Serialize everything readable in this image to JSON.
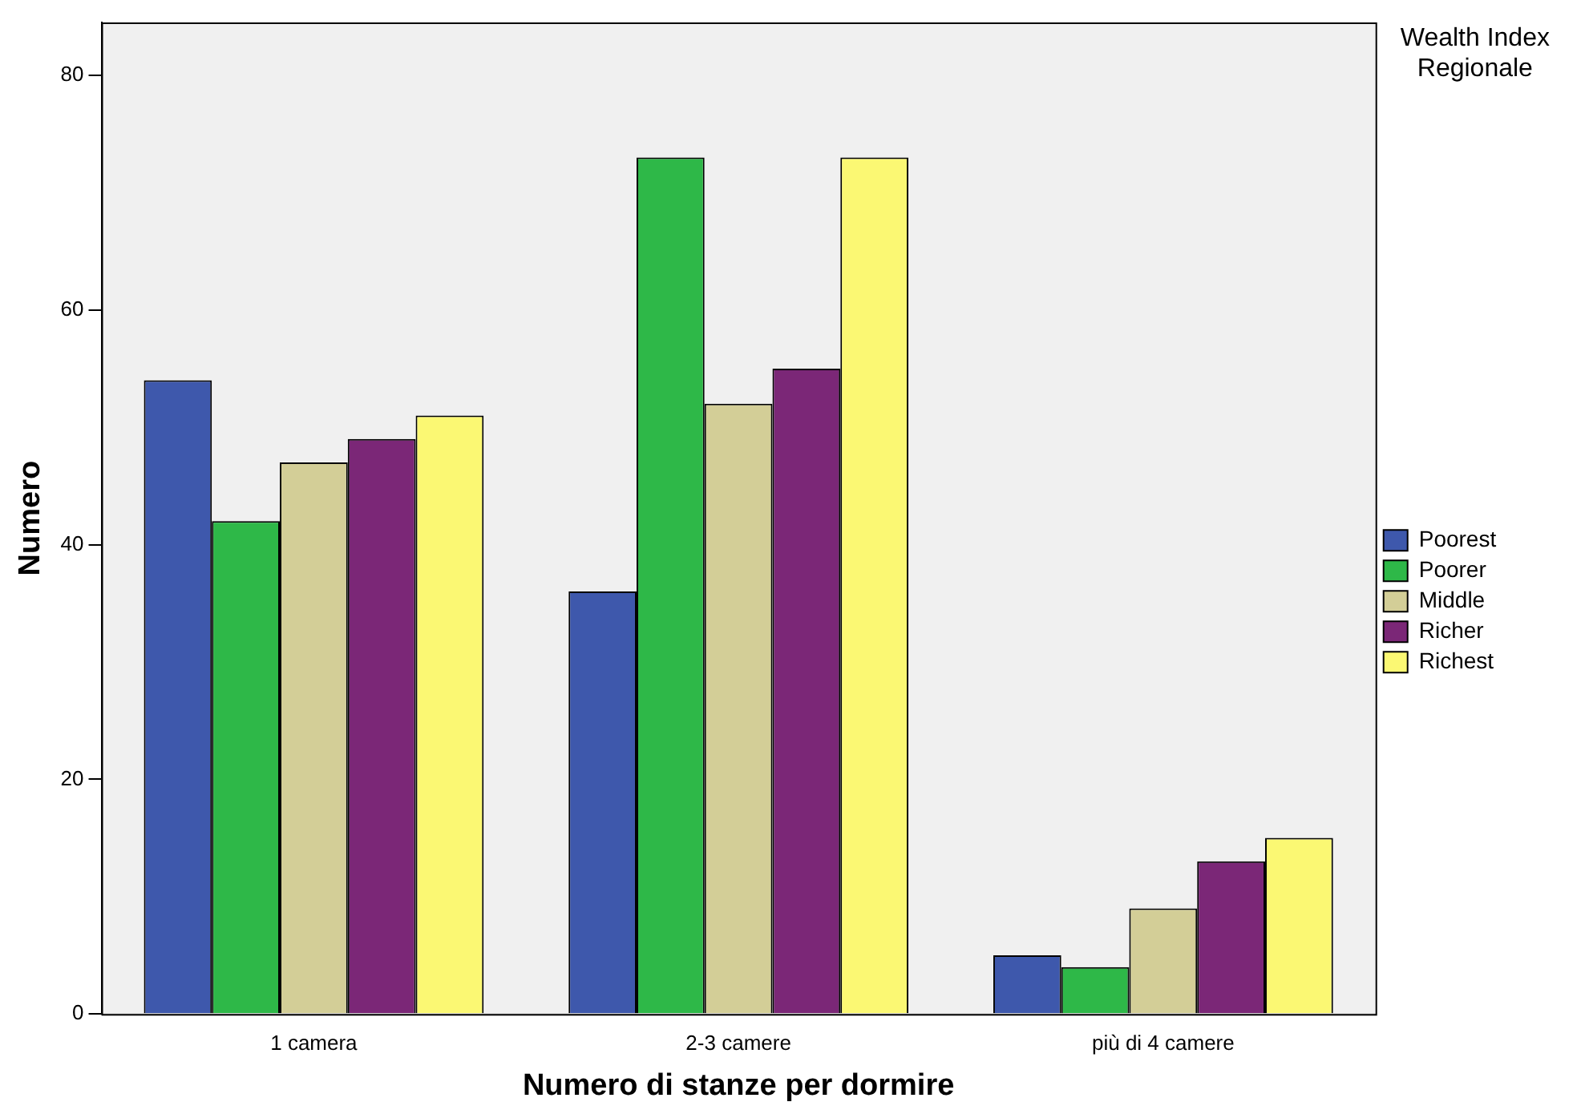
{
  "chart_data": {
    "type": "bar",
    "xlabel": "Numero di stanze per dormire",
    "ylabel": "Numero",
    "legend_title": "Wealth Index Regionale",
    "categories": [
      "1 camera",
      "2-3 camere",
      "più di 4 camere"
    ],
    "series": [
      {
        "name": "Poorest",
        "color": "#3e58ac",
        "values": [
          54,
          36,
          5
        ]
      },
      {
        "name": "Poorer",
        "color": "#2eb848",
        "values": [
          42,
          73,
          4
        ]
      },
      {
        "name": "Middle",
        "color": "#d3ce97",
        "values": [
          47,
          52,
          9
        ]
      },
      {
        "name": "Richer",
        "color": "#7b2777",
        "values": [
          49,
          55,
          13
        ]
      },
      {
        "name": "Richest",
        "color": "#fbf873",
        "values": [
          51,
          73,
          15
        ]
      }
    ],
    "ylim": [
      0,
      84.5
    ],
    "yticks": [
      0,
      20,
      40,
      60,
      80
    ],
    "grid": false,
    "legend": "right"
  }
}
